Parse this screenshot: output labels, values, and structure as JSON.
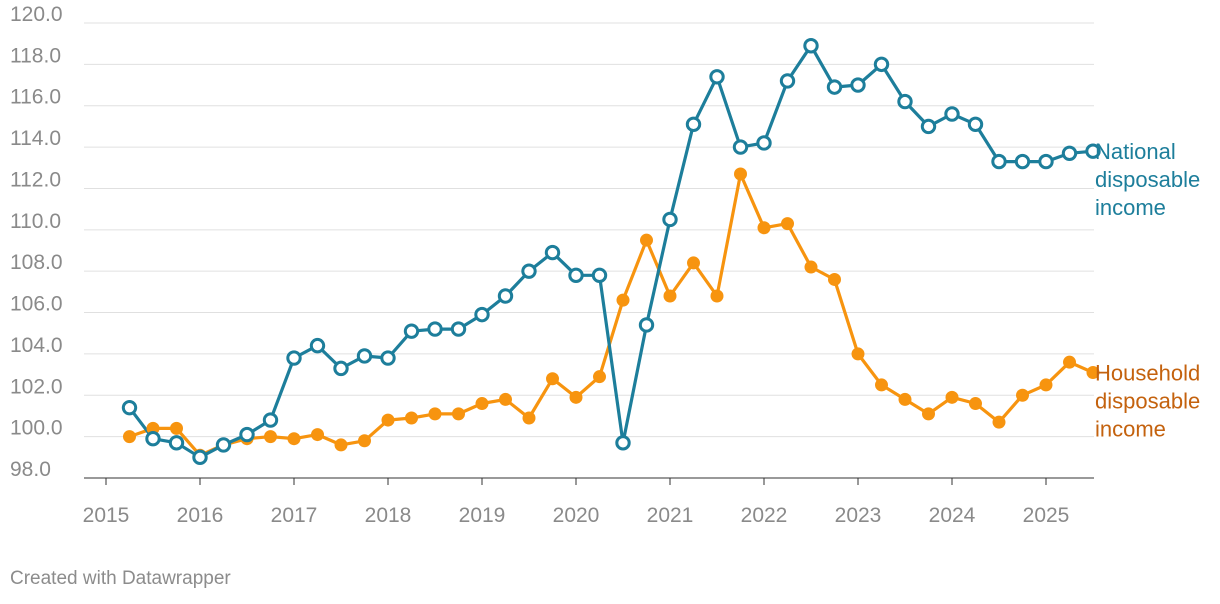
{
  "chart_data": {
    "type": "line",
    "title": "",
    "xlabel": "",
    "ylabel": "",
    "ylim": [
      98,
      120
    ],
    "xlim": [
      2015,
      2025.5
    ],
    "y_ticks": [
      "98.0",
      "100.0",
      "102.0",
      "104.0",
      "106.0",
      "108.0",
      "110.0",
      "112.0",
      "114.0",
      "116.0",
      "118.0",
      "120.0"
    ],
    "x_ticks": [
      "2015",
      "2016",
      "2017",
      "2018",
      "2019",
      "2020",
      "2021",
      "2022",
      "2023",
      "2024",
      "2025"
    ],
    "grid": true,
    "x": [
      2015.25,
      2015.5,
      2015.75,
      2016.0,
      2016.25,
      2016.5,
      2016.75,
      2017.0,
      2017.25,
      2017.5,
      2017.75,
      2018.0,
      2018.25,
      2018.5,
      2018.75,
      2019.0,
      2019.25,
      2019.5,
      2019.75,
      2020.0,
      2020.25,
      2020.5,
      2020.75,
      2021.0,
      2021.25,
      2021.5,
      2021.75,
      2022.0,
      2022.25,
      2022.5,
      2022.75,
      2023.0,
      2023.25,
      2023.5,
      2023.75,
      2024.0,
      2024.25,
      2024.5,
      2024.75,
      2025.0,
      2025.25,
      2025.5
    ],
    "series": [
      {
        "name": "National disposable income",
        "label_lines": [
          "National",
          "disposable",
          "income"
        ],
        "color": "#1d7e9b",
        "marker": "hollow",
        "values": [
          101.4,
          99.9,
          99.7,
          99.0,
          99.6,
          100.1,
          100.8,
          103.8,
          104.4,
          103.3,
          103.9,
          103.8,
          105.1,
          105.2,
          105.2,
          105.9,
          106.8,
          108.0,
          108.9,
          107.8,
          107.8,
          99.7,
          105.4,
          110.5,
          115.1,
          117.4,
          114.0,
          114.2,
          117.2,
          118.9,
          116.9,
          117.0,
          118.0,
          116.2,
          115.0,
          115.6,
          115.1,
          113.3,
          113.3,
          113.3,
          113.7,
          113.8
        ]
      },
      {
        "name": "Household disposable income",
        "label_lines": [
          "Household",
          "disposable",
          "income"
        ],
        "color": "#f7940f",
        "label_color": "#c4620e",
        "marker": "filled",
        "values": [
          100.0,
          100.4,
          100.4,
          99.1,
          99.6,
          99.9,
          100.0,
          99.9,
          100.1,
          99.6,
          99.8,
          100.8,
          100.9,
          101.1,
          101.1,
          101.6,
          101.8,
          100.9,
          102.8,
          101.9,
          102.9,
          106.6,
          109.5,
          106.8,
          108.4,
          106.8,
          112.7,
          110.1,
          110.3,
          108.2,
          107.6,
          104.0,
          102.5,
          101.8,
          101.1,
          101.9,
          101.6,
          100.7,
          102.0,
          102.5,
          103.6,
          103.1
        ]
      }
    ]
  },
  "credit": "Created with Datawrapper"
}
